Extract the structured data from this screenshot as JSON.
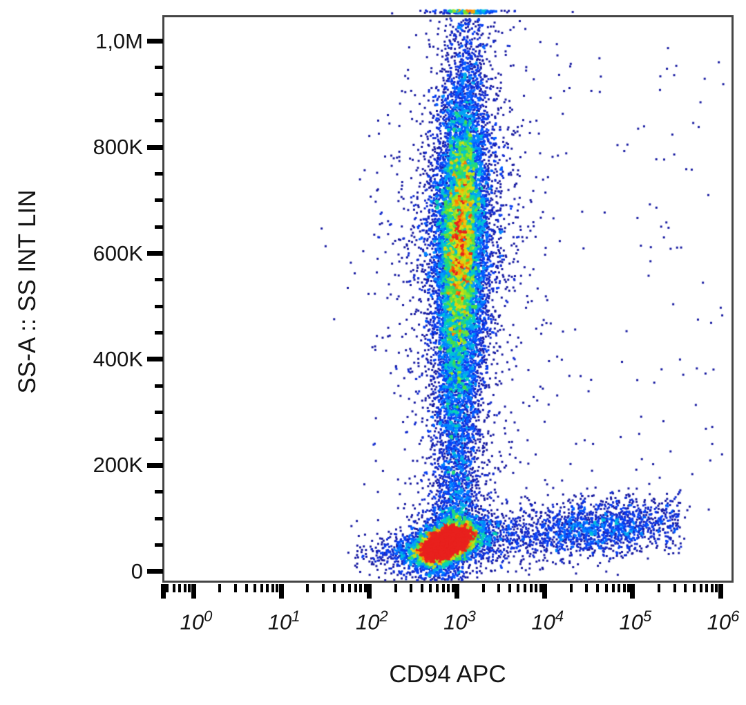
{
  "chart_data": {
    "type": "scatter",
    "subtype": "flow-cytometry-pseudocolor-density-plot",
    "title": "",
    "xlabel": "CD94 APC",
    "ylabel": "SS-A :: SS INT LIN",
    "x_scale": "log10",
    "y_scale": "linear",
    "x_range_log10": [
      -0.354,
      6.149
    ],
    "y_range": [
      -21000,
      1049000
    ],
    "grid": false,
    "legend": false,
    "x_ticks": [
      {
        "label_base": "10",
        "exponent": 0
      },
      {
        "label_base": "10",
        "exponent": 1
      },
      {
        "label_base": "10",
        "exponent": 2
      },
      {
        "label_base": "10",
        "exponent": 3
      },
      {
        "label_base": "10",
        "exponent": 4
      },
      {
        "label_base": "10",
        "exponent": 5
      },
      {
        "label_base": "10",
        "exponent": 6
      }
    ],
    "x_minor_subdivisions": [
      2,
      3,
      4,
      5,
      6,
      7,
      8,
      9
    ],
    "y_major_ticks": [
      {
        "value": 0,
        "label": "0"
      },
      {
        "value": 200000,
        "label": "200K"
      },
      {
        "value": 400000,
        "label": "400K"
      },
      {
        "value": 600000,
        "label": "600K"
      },
      {
        "value": 800000,
        "label": "800K"
      },
      {
        "value": 1000000,
        "label": "1,0M"
      }
    ],
    "y_minor_tick_step": 50000,
    "populations": [
      {
        "name": "ss-high-column",
        "n": 17000,
        "x_components": [
          {
            "dist": "gauss",
            "mean": 3.0,
            "sd": 0.125,
            "w": 0.7
          },
          {
            "dist": "gauss",
            "mean": 3.0,
            "sd": 0.22,
            "w": 0.24
          },
          {
            "dist": "gauss",
            "mean": 3.0,
            "sd": 0.46,
            "w": 0.06
          }
        ],
        "y_components": [
          {
            "dist": "gauss",
            "mean": 640000,
            "sd": 130000,
            "w": 0.5
          },
          {
            "dist": "gauss",
            "mean": 500000,
            "sd": 280000,
            "w": 0.5
          }
        ],
        "x_slope_per_100k": 0.013,
        "x_slope_y_ref": 300000,
        "pile_top": true
      },
      {
        "name": "lymphocyte-blob",
        "n": 10500,
        "x_components": [
          {
            "dist": "gauss",
            "mean": 2.88,
            "sd": 0.155,
            "w": 0.82
          },
          {
            "dist": "gauss",
            "mean": 2.84,
            "sd": 0.34,
            "w": 0.18
          }
        ],
        "y_components": [
          {
            "dist": "gauss",
            "mean": 52000,
            "sd": 17500,
            "w": 0.82
          },
          {
            "dist": "gauss",
            "mean": 56000,
            "sd": 42000,
            "w": 0.18
          }
        ],
        "xy_corr": 0.5
      },
      {
        "name": "cd94-positive-arm",
        "n": 1900,
        "x_components": [
          {
            "dist": "uniform",
            "a": 3.25,
            "b": 5.55,
            "w": 0.5
          },
          {
            "dist": "gauss",
            "mean": 4.55,
            "sd": 0.4,
            "w": 0.5
          }
        ],
        "y_components": [
          {
            "dist": "gauss",
            "mean": 62000,
            "sd": 27000,
            "w": 1.0
          }
        ],
        "y_slope_per_decade": 14000,
        "x_ref_log": 3.25
      },
      {
        "name": "scattered-events-right",
        "n": 140,
        "x_components": [
          {
            "dist": "uniform",
            "a": 3.35,
            "b": 6.05,
            "w": 1.0
          }
        ],
        "y_components": [
          {
            "dist": "uniform",
            "a": 40000,
            "b": 1000000,
            "w": 1.0
          }
        ]
      },
      {
        "name": "scattered-events-left",
        "n": 30,
        "x_components": [
          {
            "dist": "uniform",
            "a": 1.75,
            "b": 2.5,
            "w": 1.0
          }
        ],
        "y_components": [
          {
            "dist": "gauss",
            "mean": 55000,
            "sd": 25000,
            "w": 1.0
          }
        ]
      }
    ],
    "colormap": [
      {
        "t": 0.0,
        "color": "#0f0f5a"
      },
      {
        "t": 0.12,
        "color": "#1a1eb4"
      },
      {
        "t": 0.25,
        "color": "#0546ff"
      },
      {
        "t": 0.37,
        "color": "#0096ff"
      },
      {
        "t": 0.48,
        "color": "#00d2c8"
      },
      {
        "t": 0.59,
        "color": "#3cdc50"
      },
      {
        "t": 0.7,
        "color": "#a0e61e"
      },
      {
        "t": 0.8,
        "color": "#e6dc14"
      },
      {
        "t": 0.9,
        "color": "#ff8c00"
      },
      {
        "t": 1.0,
        "color": "#e8211e"
      }
    ],
    "render": {
      "seed": 7,
      "dot_size": 3,
      "bin_size": 4,
      "cap_fraction": 0.18,
      "gamma": 0.8
    },
    "axis_color": "#000000",
    "border_color": "#454545",
    "background_color": "#ffffff"
  }
}
